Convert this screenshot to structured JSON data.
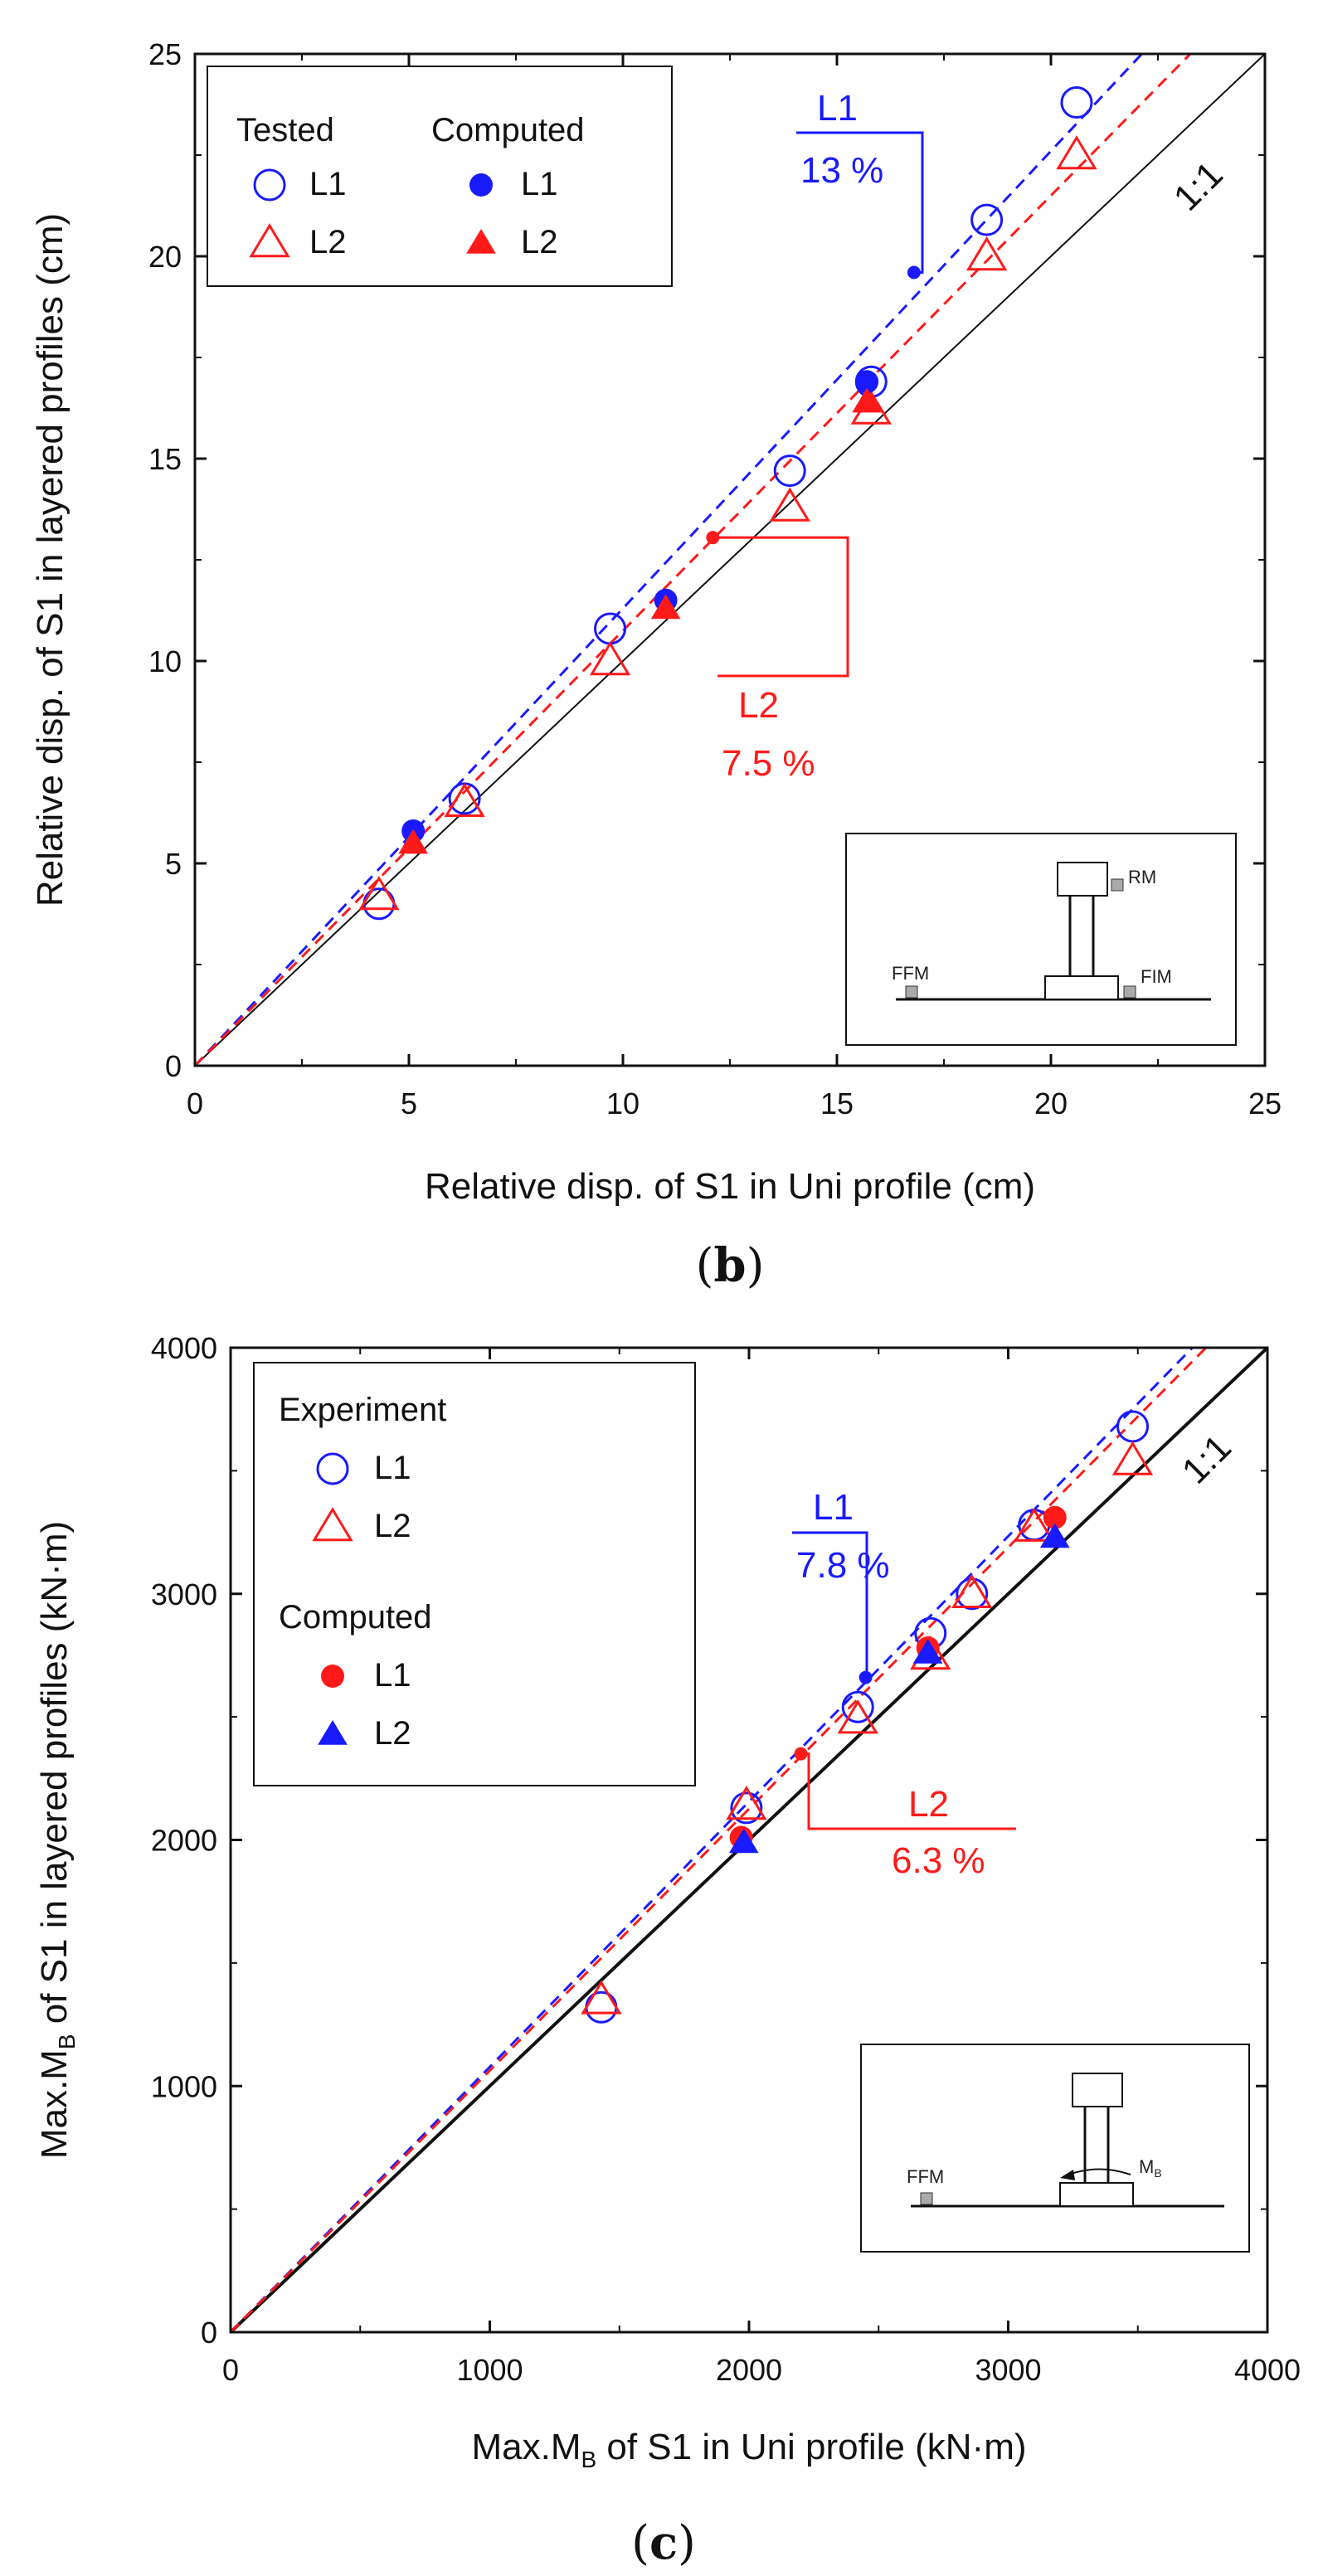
{
  "chart_data": [
    {
      "type": "scatter",
      "panel": "b",
      "xlabel": "Relative disp. of S1 in Uni profile (cm)",
      "ylabel": "Relative disp. of S1 in layered profiles (cm)",
      "xlim": [
        0,
        25
      ],
      "ylim": [
        0,
        25
      ],
      "xticks": [
        0,
        5,
        10,
        15,
        20,
        25
      ],
      "yticks": [
        0,
        5,
        10,
        15,
        20,
        25
      ],
      "xtick_labels": [
        "0",
        "5",
        "10",
        "15",
        "20",
        "25"
      ],
      "ytick_labels": [
        "0",
        "5",
        "10",
        "15",
        "20",
        "25"
      ],
      "grid": false,
      "legend_position": "top-left",
      "legend": {
        "group1": "Tested",
        "group2": "Computed",
        "l1": "L1",
        "l2": "L2"
      },
      "reference_line": {
        "label": "1:1",
        "slope": 1
      },
      "fit_lines": [
        {
          "series": "L1",
          "slope": 1.13,
          "color": "#1a1aff"
        },
        {
          "series": "L2",
          "slope": 1.075,
          "color": "#ff1a1a"
        }
      ],
      "annotations": [
        {
          "series": "L1",
          "name": "L1",
          "value": "13 %",
          "point": [
            16.8,
            19.6
          ],
          "color": "#1a1aff"
        },
        {
          "series": "L2",
          "name": "L2",
          "value": "7.5 %",
          "point": [
            12.1,
            13.05
          ],
          "color": "#ff1a1a"
        }
      ],
      "series": [
        {
          "name": "L1",
          "group": "Tested",
          "marker": "circle-open",
          "color": "#1a1aff",
          "points": [
            [
              4.3,
              4.0
            ],
            [
              6.3,
              6.6
            ],
            [
              9.7,
              10.8
            ],
            [
              13.9,
              14.7
            ],
            [
              15.8,
              16.9
            ],
            [
              18.5,
              20.9
            ],
            [
              20.6,
              23.8
            ]
          ]
        },
        {
          "name": "L2",
          "group": "Tested",
          "marker": "triangle-open",
          "color": "#ff1a1a",
          "points": [
            [
              4.3,
              4.2
            ],
            [
              6.3,
              6.5
            ],
            [
              9.7,
              10.0
            ],
            [
              13.9,
              13.8
            ],
            [
              15.8,
              16.2
            ],
            [
              18.5,
              20.0
            ],
            [
              20.6,
              22.5
            ]
          ]
        },
        {
          "name": "L1",
          "group": "Computed",
          "marker": "circle-filled",
          "color": "#1a1aff",
          "points": [
            [
              5.1,
              5.8
            ],
            [
              11.0,
              11.5
            ],
            [
              15.7,
              16.9
            ]
          ]
        },
        {
          "name": "L2",
          "group": "Computed",
          "marker": "triangle-filled",
          "color": "#ff1a1a",
          "points": [
            [
              5.1,
              5.5
            ],
            [
              11.0,
              11.3
            ],
            [
              15.7,
              16.4
            ]
          ]
        }
      ],
      "inset_labels": [
        "RM",
        "FFM",
        "FIM"
      ],
      "panel_label": "b"
    },
    {
      "type": "scatter",
      "panel": "c",
      "xlabel_prefix": "Max.M",
      "xlabel_sub": "B",
      "xlabel_suffix": " of S1 in Uni profile (kN·m)",
      "ylabel_prefix": "Max.M",
      "ylabel_sub": "B",
      "ylabel_suffix": " of S1 in layered profiles (kN·m)",
      "xlim": [
        0,
        4000
      ],
      "ylim": [
        0,
        4000
      ],
      "xticks": [
        0,
        1000,
        2000,
        3000,
        4000
      ],
      "yticks": [
        0,
        1000,
        2000,
        3000,
        4000
      ],
      "xtick_labels": [
        "0",
        "1000",
        "2000",
        "3000",
        "4000"
      ],
      "ytick_labels": [
        "0",
        "1000",
        "2000",
        "3000",
        "4000"
      ],
      "grid": false,
      "legend_position": "top-left",
      "legend": {
        "group1": "Experiment",
        "group2": "Computed",
        "l1": "L1",
        "l2": "L2"
      },
      "reference_line": {
        "label": "1:1",
        "slope": 1
      },
      "fit_lines": [
        {
          "series": "L1",
          "slope": 1.078,
          "color": "#1a1aff"
        },
        {
          "series": "L2",
          "slope": 1.063,
          "color": "#ff1a1a"
        }
      ],
      "annotations": [
        {
          "series": "L1",
          "name": "L1",
          "value": "7.8 %",
          "point": [
            2450,
            2660
          ],
          "color": "#1a1aff"
        },
        {
          "series": "L2",
          "name": "L2",
          "value": "6.3 %",
          "point": [
            2200,
            2350
          ],
          "color": "#ff1a1a"
        }
      ],
      "series": [
        {
          "name": "L1",
          "group": "Experiment",
          "marker": "circle-open",
          "color": "#1a1aff",
          "points": [
            [
              1430,
              1320
            ],
            [
              1990,
              2130
            ],
            [
              2420,
              2540
            ],
            [
              2700,
              2840
            ],
            [
              2860,
              3000
            ],
            [
              3100,
              3280
            ],
            [
              3480,
              3680
            ]
          ]
        },
        {
          "name": "L2",
          "group": "Experiment",
          "marker": "triangle-open",
          "color": "#ff1a1a",
          "points": [
            [
              1430,
              1350
            ],
            [
              1990,
              2140
            ],
            [
              2420,
              2490
            ],
            [
              2700,
              2750
            ],
            [
              2860,
              3000
            ],
            [
              3100,
              3270
            ],
            [
              3480,
              3540
            ]
          ]
        },
        {
          "name": "L1",
          "group": "Computed",
          "marker": "circle-filled",
          "color": "#ff1a1a",
          "points": [
            [
              1970,
              2010
            ],
            [
              2690,
              2780
            ],
            [
              3180,
              3310
            ]
          ]
        },
        {
          "name": "L2",
          "group": "Computed",
          "marker": "triangle-filled",
          "color": "#1a1aff",
          "points": [
            [
              1980,
              1990
            ],
            [
              2690,
              2760
            ],
            [
              3180,
              3230
            ]
          ]
        }
      ],
      "inset_labels": [
        "FFM",
        "M",
        "B"
      ],
      "panel_label": "c"
    }
  ]
}
